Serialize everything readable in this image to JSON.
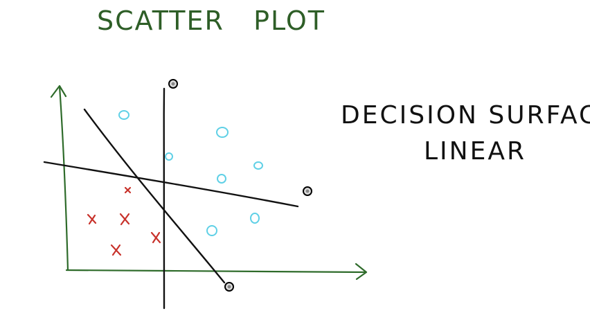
{
  "title": "SCATTER   PLOT",
  "notes": [
    "DECISION  SURFACE",
    "LINEAR"
  ],
  "colors": {
    "title": "#2e5e27",
    "axes": "#2e6b2a",
    "lines": "#111111",
    "class_o": "#5fd0e6",
    "class_x": "#c8322b",
    "text": "#111111"
  },
  "legend_markers": {
    "class_o": "o",
    "class_x": "x"
  }
}
